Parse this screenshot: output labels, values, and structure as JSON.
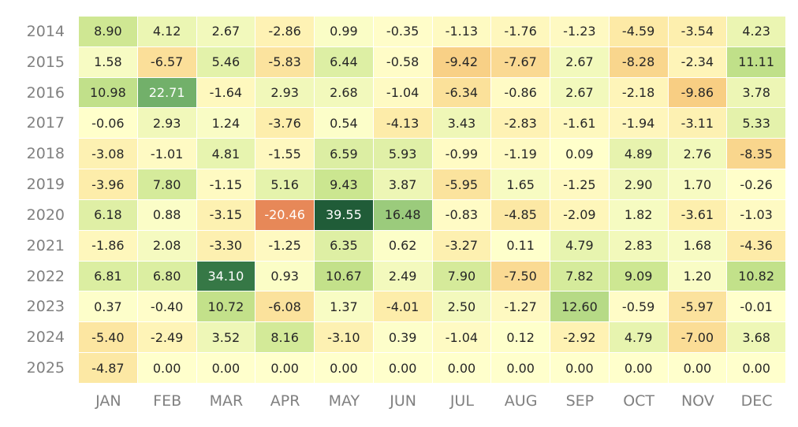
{
  "chart_data": {
    "type": "heatmap",
    "title": "",
    "xlabel": "",
    "ylabel": "",
    "x_categories": [
      "JAN",
      "FEB",
      "MAR",
      "APR",
      "MAY",
      "JUN",
      "JUL",
      "AUG",
      "SEP",
      "OCT",
      "NOV",
      "DEC"
    ],
    "y_categories": [
      "2014",
      "2015",
      "2016",
      "2017",
      "2018",
      "2019",
      "2020",
      "2021",
      "2022",
      "2023",
      "2024",
      "2025"
    ],
    "values": [
      [
        8.9,
        4.12,
        2.67,
        -2.86,
        0.99,
        -0.35,
        -1.13,
        -1.76,
        -1.23,
        -4.59,
        -3.54,
        4.23
      ],
      [
        1.58,
        -6.57,
        5.46,
        -5.83,
        6.44,
        -0.58,
        -9.42,
        -7.67,
        2.67,
        -8.28,
        -2.34,
        11.11
      ],
      [
        10.98,
        22.71,
        -1.64,
        2.93,
        2.68,
        -1.04,
        -6.34,
        -0.86,
        2.67,
        -2.18,
        -9.86,
        3.78
      ],
      [
        -0.06,
        2.93,
        1.24,
        -3.76,
        0.54,
        -4.13,
        3.43,
        -2.83,
        -1.61,
        -1.94,
        -3.11,
        5.33
      ],
      [
        -3.08,
        -1.01,
        4.81,
        -1.55,
        6.59,
        5.93,
        -0.99,
        -1.19,
        0.09,
        4.89,
        2.76,
        -8.35
      ],
      [
        -3.96,
        7.8,
        -1.15,
        5.16,
        9.43,
        3.87,
        -5.95,
        1.65,
        -1.25,
        2.9,
        1.7,
        -0.26
      ],
      [
        6.18,
        0.88,
        -3.15,
        -20.46,
        39.55,
        16.48,
        -0.83,
        -4.85,
        -2.09,
        1.82,
        -3.61,
        -1.03
      ],
      [
        -1.86,
        2.08,
        -3.3,
        -1.25,
        6.35,
        0.62,
        -3.27,
        0.11,
        4.79,
        2.83,
        1.68,
        -4.36
      ],
      [
        6.81,
        6.8,
        34.1,
        0.93,
        10.67,
        2.49,
        7.9,
        -7.5,
        7.82,
        9.09,
        1.2,
        10.82
      ],
      [
        0.37,
        -0.4,
        10.72,
        -6.08,
        1.37,
        -4.01,
        2.5,
        -1.27,
        12.6,
        -0.59,
        -5.97,
        -0.01
      ],
      [
        -5.4,
        -2.49,
        3.52,
        8.16,
        -3.1,
        0.39,
        -1.04,
        0.12,
        -2.92,
        4.79,
        -7.0,
        3.68
      ],
      [
        -4.87,
        0.0,
        0.0,
        0.0,
        0.0,
        0.0,
        0.0,
        0.0,
        0.0,
        0.0,
        0.0,
        0.0
      ]
    ],
    "value_format": "0.00",
    "colormap": "RdYlGn",
    "center": 0,
    "vmin": -40,
    "vmax": 40,
    "grid": false,
    "legend": "none"
  }
}
